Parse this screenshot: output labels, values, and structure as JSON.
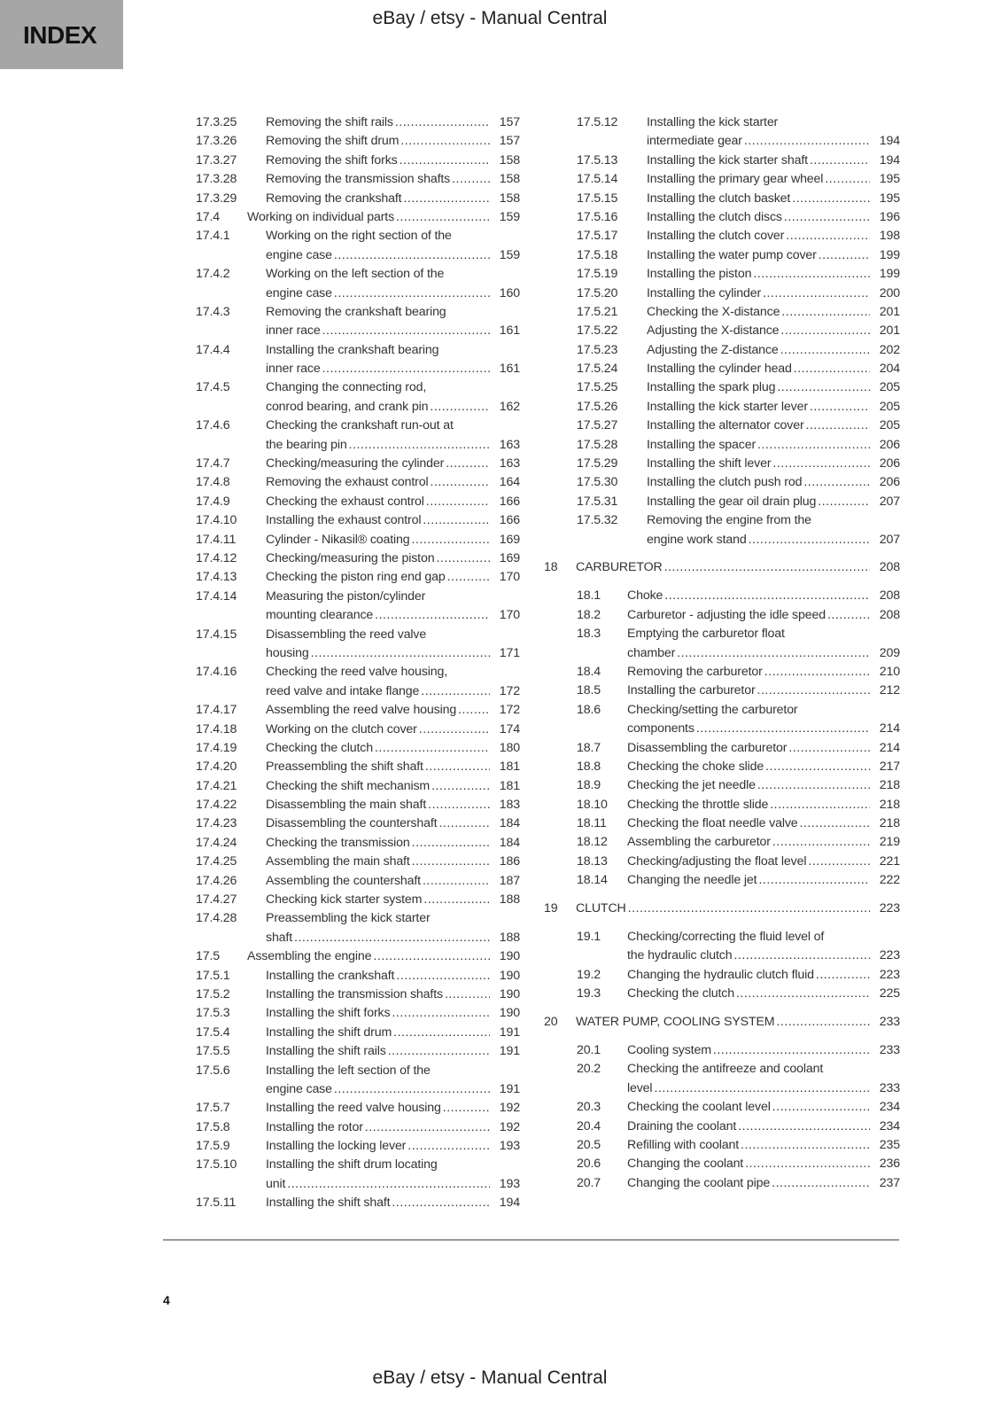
{
  "header": {
    "index_label": "INDEX",
    "title": "eBay / etsy - Manual Central"
  },
  "footer": {
    "title": "eBay / etsy - Manual Central",
    "page_number": "4"
  },
  "left_column": [
    {
      "num": "17.3.25",
      "lines": [
        "Removing the shift rails"
      ],
      "page": "157",
      "level": 3
    },
    {
      "num": "17.3.26",
      "lines": [
        "Removing the shift drum"
      ],
      "page": "157",
      "level": 3
    },
    {
      "num": "17.3.27",
      "lines": [
        "Removing the shift forks"
      ],
      "page": "158",
      "level": 3
    },
    {
      "num": "17.3.28",
      "lines": [
        "Removing the transmission shafts"
      ],
      "page": "158",
      "level": 3
    },
    {
      "num": "17.3.29",
      "lines": [
        "Removing the crankshaft"
      ],
      "page": "158",
      "level": 3
    },
    {
      "num": "17.4",
      "lines": [
        "Working on individual parts"
      ],
      "page": "159",
      "level": 2
    },
    {
      "num": "17.4.1",
      "lines": [
        "Working on the right section of the",
        "engine case"
      ],
      "page": "159",
      "level": 3
    },
    {
      "num": "17.4.2",
      "lines": [
        "Working on the left section of the",
        "engine case"
      ],
      "page": "160",
      "level": 3
    },
    {
      "num": "17.4.3",
      "lines": [
        "Removing the crankshaft bearing",
        "inner race"
      ],
      "page": "161",
      "level": 3
    },
    {
      "num": "17.4.4",
      "lines": [
        "Installing the crankshaft bearing",
        "inner race"
      ],
      "page": "161",
      "level": 3
    },
    {
      "num": "17.4.5",
      "lines": [
        "Changing the connecting rod,",
        "conrod bearing, and crank pin"
      ],
      "page": "162",
      "level": 3
    },
    {
      "num": "17.4.6",
      "lines": [
        "Checking the crankshaft run-out at",
        "the bearing pin"
      ],
      "page": "163",
      "level": 3
    },
    {
      "num": "17.4.7",
      "lines": [
        "Checking/measuring the cylinder"
      ],
      "page": "163",
      "level": 3
    },
    {
      "num": "17.4.8",
      "lines": [
        "Removing the exhaust control"
      ],
      "page": "164",
      "level": 3
    },
    {
      "num": "17.4.9",
      "lines": [
        "Checking the exhaust control"
      ],
      "page": "166",
      "level": 3
    },
    {
      "num": "17.4.10",
      "lines": [
        "Installing the exhaust control"
      ],
      "page": "166",
      "level": 3
    },
    {
      "num": "17.4.11",
      "lines": [
        "Cylinder - Nikasil® coating"
      ],
      "page": "169",
      "level": 3
    },
    {
      "num": "17.4.12",
      "lines": [
        "Checking/measuring the piston"
      ],
      "page": "169",
      "level": 3
    },
    {
      "num": "17.4.13",
      "lines": [
        "Checking the piston ring end gap"
      ],
      "page": "170",
      "level": 3
    },
    {
      "num": "17.4.14",
      "lines": [
        "Measuring the piston/cylinder",
        "mounting clearance"
      ],
      "page": "170",
      "level": 3
    },
    {
      "num": "17.4.15",
      "lines": [
        "Disassembling the reed valve",
        "housing"
      ],
      "page": "171",
      "level": 3
    },
    {
      "num": "17.4.16",
      "lines": [
        "Checking the reed valve housing,",
        "reed valve and intake flange"
      ],
      "page": "172",
      "level": 3
    },
    {
      "num": "17.4.17",
      "lines": [
        "Assembling the reed valve housing"
      ],
      "page": "172",
      "level": 3
    },
    {
      "num": "17.4.18",
      "lines": [
        "Working on the clutch cover"
      ],
      "page": "174",
      "level": 3
    },
    {
      "num": "17.4.19",
      "lines": [
        "Checking the clutch"
      ],
      "page": "180",
      "level": 3
    },
    {
      "num": "17.4.20",
      "lines": [
        "Preassembling the shift shaft"
      ],
      "page": "181",
      "level": 3
    },
    {
      "num": "17.4.21",
      "lines": [
        "Checking the shift mechanism"
      ],
      "page": "181",
      "level": 3
    },
    {
      "num": "17.4.22",
      "lines": [
        "Disassembling the main shaft"
      ],
      "page": "183",
      "level": 3
    },
    {
      "num": "17.4.23",
      "lines": [
        "Disassembling the countershaft"
      ],
      "page": "184",
      "level": 3
    },
    {
      "num": "17.4.24",
      "lines": [
        "Checking the transmission"
      ],
      "page": "184",
      "level": 3
    },
    {
      "num": "17.4.25",
      "lines": [
        "Assembling the main shaft"
      ],
      "page": "186",
      "level": 3
    },
    {
      "num": "17.4.26",
      "lines": [
        "Assembling the countershaft"
      ],
      "page": "187",
      "level": 3
    },
    {
      "num": "17.4.27",
      "lines": [
        "Checking kick starter system"
      ],
      "page": "188",
      "level": 3
    },
    {
      "num": "17.4.28",
      "lines": [
        "Preassembling the kick starter",
        "shaft"
      ],
      "page": "188",
      "level": 3
    },
    {
      "num": "17.5",
      "lines": [
        "Assembling the engine"
      ],
      "page": "190",
      "level": 2
    },
    {
      "num": "17.5.1",
      "lines": [
        "Installing the crankshaft"
      ],
      "page": "190",
      "level": 3
    },
    {
      "num": "17.5.2",
      "lines": [
        "Installing the transmission shafts"
      ],
      "page": "190",
      "level": 3
    },
    {
      "num": "17.5.3",
      "lines": [
        "Installing the shift forks"
      ],
      "page": "190",
      "level": 3
    },
    {
      "num": "17.5.4",
      "lines": [
        "Installing the shift drum"
      ],
      "page": "191",
      "level": 3
    },
    {
      "num": "17.5.5",
      "lines": [
        "Installing the shift rails"
      ],
      "page": "191",
      "level": 3
    },
    {
      "num": "17.5.6",
      "lines": [
        "Installing the left section of the",
        "engine case"
      ],
      "page": "191",
      "level": 3
    },
    {
      "num": "17.5.7",
      "lines": [
        "Installing the reed valve housing"
      ],
      "page": "192",
      "level": 3
    },
    {
      "num": "17.5.8",
      "lines": [
        "Installing the rotor"
      ],
      "page": "192",
      "level": 3
    },
    {
      "num": "17.5.9",
      "lines": [
        "Installing the locking lever"
      ],
      "page": "193",
      "level": 3
    },
    {
      "num": "17.5.10",
      "lines": [
        "Installing the shift drum locating",
        "unit"
      ],
      "page": "193",
      "level": 3
    },
    {
      "num": "17.5.11",
      "lines": [
        "Installing the shift shaft"
      ],
      "page": "194",
      "level": 3
    }
  ],
  "right_column": [
    {
      "num": "17.5.12",
      "lines": [
        "Installing the kick starter",
        "intermediate gear"
      ],
      "page": "194",
      "level": 3
    },
    {
      "num": "17.5.13",
      "lines": [
        "Installing the kick starter shaft"
      ],
      "page": "194",
      "level": 3
    },
    {
      "num": "17.5.14",
      "lines": [
        "Installing the primary gear wheel"
      ],
      "page": "195",
      "level": 3
    },
    {
      "num": "17.5.15",
      "lines": [
        "Installing the clutch basket"
      ],
      "page": "195",
      "level": 3
    },
    {
      "num": "17.5.16",
      "lines": [
        "Installing the clutch discs"
      ],
      "page": "196",
      "level": 3
    },
    {
      "num": "17.5.17",
      "lines": [
        "Installing the clutch cover"
      ],
      "page": "198",
      "level": 3
    },
    {
      "num": "17.5.18",
      "lines": [
        "Installing the water pump cover"
      ],
      "page": "199",
      "level": 3
    },
    {
      "num": "17.5.19",
      "lines": [
        "Installing the piston"
      ],
      "page": "199",
      "level": 3
    },
    {
      "num": "17.5.20",
      "lines": [
        "Installing the cylinder"
      ],
      "page": "200",
      "level": 3
    },
    {
      "num": "17.5.21",
      "lines": [
        "Checking the X-distance"
      ],
      "page": "201",
      "level": 3
    },
    {
      "num": "17.5.22",
      "lines": [
        "Adjusting the X-distance"
      ],
      "page": "201",
      "level": 3
    },
    {
      "num": "17.5.23",
      "lines": [
        "Adjusting the Z-distance"
      ],
      "page": "202",
      "level": 3
    },
    {
      "num": "17.5.24",
      "lines": [
        "Installing the cylinder head"
      ],
      "page": "204",
      "level": 3
    },
    {
      "num": "17.5.25",
      "lines": [
        "Installing the spark plug"
      ],
      "page": "205",
      "level": 3
    },
    {
      "num": "17.5.26",
      "lines": [
        "Installing the kick starter lever"
      ],
      "page": "205",
      "level": 3
    },
    {
      "num": "17.5.27",
      "lines": [
        "Installing the alternator cover"
      ],
      "page": "205",
      "level": 3
    },
    {
      "num": "17.5.28",
      "lines": [
        "Installing the spacer"
      ],
      "page": "206",
      "level": 3
    },
    {
      "num": "17.5.29",
      "lines": [
        "Installing the shift lever"
      ],
      "page": "206",
      "level": 3
    },
    {
      "num": "17.5.30",
      "lines": [
        "Installing the clutch push rod"
      ],
      "page": "206",
      "level": 3
    },
    {
      "num": "17.5.31",
      "lines": [
        "Installing the gear oil drain plug"
      ],
      "page": "207",
      "level": 3
    },
    {
      "num": "17.5.32",
      "lines": [
        "Removing the engine from the",
        "engine work stand"
      ],
      "page": "207",
      "level": 3
    },
    {
      "num": "18",
      "lines": [
        "CARBURETOR"
      ],
      "page": "208",
      "level": 1
    },
    {
      "num": "18.1",
      "lines": [
        "Choke"
      ],
      "page": "208",
      "level": 4
    },
    {
      "num": "18.2",
      "lines": [
        "Carburetor - adjusting the idle speed"
      ],
      "page": "208",
      "level": 4
    },
    {
      "num": "18.3",
      "lines": [
        "Emptying the carburetor float",
        "chamber"
      ],
      "page": "209",
      "level": 4
    },
    {
      "num": "18.4",
      "lines": [
        "Removing the carburetor"
      ],
      "page": "210",
      "level": 4
    },
    {
      "num": "18.5",
      "lines": [
        "Installing the carburetor"
      ],
      "page": "212",
      "level": 4
    },
    {
      "num": "18.6",
      "lines": [
        "Checking/setting the carburetor",
        "components"
      ],
      "page": "214",
      "level": 4
    },
    {
      "num": "18.7",
      "lines": [
        "Disassembling the carburetor"
      ],
      "page": "214",
      "level": 4
    },
    {
      "num": "18.8",
      "lines": [
        "Checking the choke slide"
      ],
      "page": "217",
      "level": 4
    },
    {
      "num": "18.9",
      "lines": [
        "Checking the jet needle"
      ],
      "page": "218",
      "level": 4
    },
    {
      "num": "18.10",
      "lines": [
        "Checking the throttle slide"
      ],
      "page": "218",
      "level": 4
    },
    {
      "num": "18.11",
      "lines": [
        "Checking the float needle valve"
      ],
      "page": "218",
      "level": 4
    },
    {
      "num": "18.12",
      "lines": [
        "Assembling the carburetor"
      ],
      "page": "219",
      "level": 4
    },
    {
      "num": "18.13",
      "lines": [
        "Checking/adjusting the float level"
      ],
      "page": "221",
      "level": 4
    },
    {
      "num": "18.14",
      "lines": [
        "Changing the needle jet"
      ],
      "page": "222",
      "level": 4
    },
    {
      "num": "19",
      "lines": [
        "CLUTCH"
      ],
      "page": "223",
      "level": 1
    },
    {
      "num": "19.1",
      "lines": [
        "Checking/correcting the fluid level of",
        "the hydraulic clutch"
      ],
      "page": "223",
      "level": 4
    },
    {
      "num": "19.2",
      "lines": [
        "Changing the hydraulic clutch fluid"
      ],
      "page": "223",
      "level": 4
    },
    {
      "num": "19.3",
      "lines": [
        "Checking the clutch"
      ],
      "page": "225",
      "level": 4
    },
    {
      "num": "20",
      "lines": [
        "WATER PUMP, COOLING SYSTEM"
      ],
      "page": "233",
      "level": 1
    },
    {
      "num": "20.1",
      "lines": [
        "Cooling system"
      ],
      "page": "233",
      "level": 4
    },
    {
      "num": "20.2",
      "lines": [
        "Checking the antifreeze and coolant",
        "level"
      ],
      "page": "233",
      "level": 4
    },
    {
      "num": "20.3",
      "lines": [
        "Checking the coolant level"
      ],
      "page": "234",
      "level": 4
    },
    {
      "num": "20.4",
      "lines": [
        "Draining the coolant"
      ],
      "page": "234",
      "level": 4
    },
    {
      "num": "20.5",
      "lines": [
        "Refilling with coolant"
      ],
      "page": "235",
      "level": 4
    },
    {
      "num": "20.6",
      "lines": [
        "Changing the coolant"
      ],
      "page": "236",
      "level": 4
    },
    {
      "num": "20.7",
      "lines": [
        "Changing the coolant pipe"
      ],
      "page": "237",
      "level": 4
    }
  ]
}
